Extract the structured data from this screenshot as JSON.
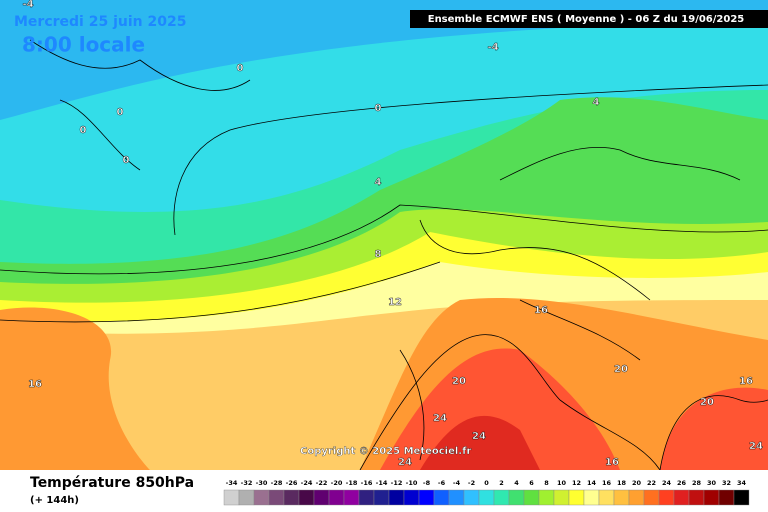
{
  "header": {
    "date_label": "Mercredi 25 juin 2025",
    "time_label": "8:00 locale",
    "model_label": "Ensemble ECMWF ENS  ( Moyenne )  -  06 Z du 19/06/2025",
    "copyright": "Copyright © 2025 Meteociel.fr"
  },
  "map": {
    "contour_labels": [
      "-4",
      "0",
      "0",
      "0",
      "0",
      "-4",
      "4",
      "0",
      "4",
      "8",
      "12",
      "16",
      "16",
      "20",
      "20",
      "20",
      "16",
      "24",
      "24",
      "24",
      "24",
      "16"
    ]
  },
  "footer": {
    "title": "Température 850hPa",
    "subtitle": "(+ 144h)"
  },
  "legend": {
    "ticks": [
      -34,
      -32,
      -30,
      -28,
      -26,
      -24,
      -22,
      -20,
      -18,
      -16,
      -14,
      -12,
      -10,
      -8,
      -6,
      -4,
      -2,
      0,
      2,
      4,
      6,
      8,
      10,
      12,
      14,
      16,
      18,
      20,
      22,
      24,
      26,
      28,
      30,
      32,
      34
    ],
    "colors": [
      "#d0d0d0",
      "#b0b0b0",
      "#9a7090",
      "#7a4a78",
      "#5a2a60",
      "#480848",
      "#600070",
      "#800090",
      "#9000a0",
      "#302080",
      "#202090",
      "#0000a0",
      "#0000d0",
      "#0000ff",
      "#1060ff",
      "#2090ff",
      "#30c0ff",
      "#30e0e0",
      "#30e8b0",
      "#40e070",
      "#60e040",
      "#a0f030",
      "#d0f030",
      "#ffff30",
      "#ffff90",
      "#ffe060",
      "#ffc040",
      "#ffa030",
      "#ff7020",
      "#ff4020",
      "#e02020",
      "#c01010",
      "#a00000",
      "#700000",
      "#000000"
    ]
  }
}
